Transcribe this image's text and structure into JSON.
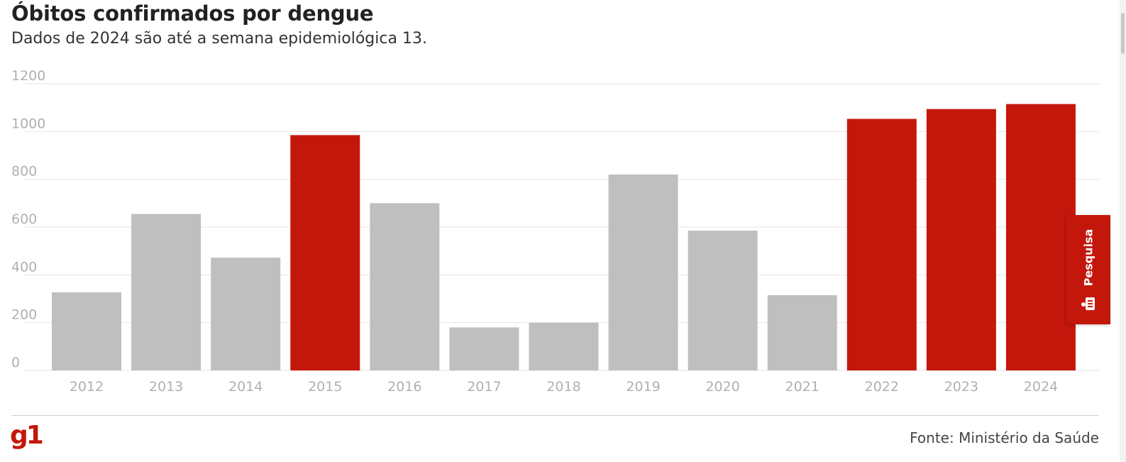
{
  "header": {
    "title": "Óbitos confirmados por dengue",
    "subtitle": "Dados de 2024 são até a semana epidemiológica 13."
  },
  "side_tab": {
    "label": "Pesquisa",
    "icon": "survey-icon",
    "color": "#c4170c"
  },
  "footer": {
    "logo": "g1",
    "source": "Fonte: Ministério da Saúde"
  },
  "colors": {
    "highlight": "#c4170c",
    "default": "#bfbfbf",
    "grid": "#e6e6e6",
    "tick": "#b0b0b0"
  },
  "chart_data": {
    "type": "bar",
    "categories": [
      "2012",
      "2013",
      "2014",
      "2015",
      "2016",
      "2017",
      "2018",
      "2019",
      "2020",
      "2021",
      "2022",
      "2023",
      "2024"
    ],
    "values": [
      327,
      655,
      472,
      985,
      700,
      180,
      200,
      820,
      585,
      315,
      1053,
      1094,
      1115
    ],
    "highlighted": [
      false,
      false,
      false,
      true,
      false,
      false,
      false,
      false,
      false,
      false,
      true,
      true,
      true
    ],
    "yticks": [
      0,
      200,
      400,
      600,
      800,
      1000,
      1200
    ],
    "ylim": [
      0,
      1200
    ],
    "grid": true,
    "legend": "none"
  }
}
